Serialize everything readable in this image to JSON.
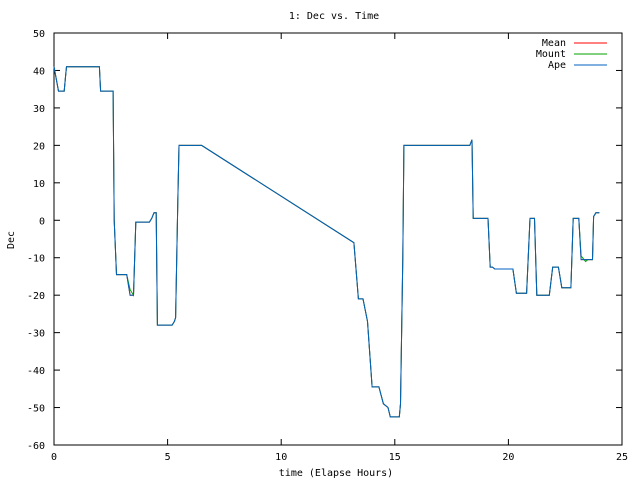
{
  "chart_data": {
    "type": "line",
    "title": "1: Dec vs. Time",
    "xlabel": "time (Elapse Hours)",
    "ylabel": "Dec",
    "xlim": [
      0,
      25
    ],
    "ylim": [
      -60,
      50
    ],
    "xticks": [
      0,
      5,
      10,
      15,
      20,
      25
    ],
    "yticks": [
      -60,
      -50,
      -40,
      -30,
      -20,
      -10,
      0,
      10,
      20,
      30,
      40,
      50
    ],
    "grid": false,
    "legend_position": "top-right",
    "series": [
      {
        "name": "Mean",
        "color": "#ff0000",
        "x": [
          0,
          0.2,
          0.45,
          0.5,
          0.55,
          0.6,
          2.0,
          2.05,
          2.6,
          2.65,
          2.75,
          3.2,
          3.35,
          3.5,
          3.6,
          3.7,
          4.2,
          4.3,
          4.4,
          4.5,
          4.55,
          5.2,
          5.3,
          5.35,
          5.45,
          5.5,
          6.5,
          13.2,
          13.4,
          13.6,
          13.8,
          14.0,
          14.3,
          14.5,
          14.7,
          14.8,
          15.2,
          15.25,
          15.35,
          15.4,
          18.3,
          18.4,
          18.45,
          18.5,
          19.1,
          19.2,
          19.3,
          19.4,
          20.2,
          20.35,
          20.8,
          20.95,
          21.15,
          21.25,
          21.35,
          21.8,
          21.95,
          22.2,
          22.35,
          22.75,
          22.85,
          23.1,
          23.2,
          23.4,
          23.5,
          23.7,
          23.75,
          23.85,
          24.0
        ],
        "y": [
          41,
          34.5,
          34.5,
          38,
          41,
          41,
          41,
          34.5,
          34.5,
          0,
          -14.5,
          -14.5,
          -20,
          -20,
          -0.5,
          -0.5,
          -0.5,
          0.5,
          2,
          2,
          -28,
          -28,
          -27,
          -26,
          5,
          20,
          20,
          -6,
          -21,
          -21,
          -27,
          -44.5,
          -44.5,
          -49,
          -50,
          -52.5,
          -52.5,
          -49,
          -10,
          20,
          20,
          21.5,
          0.5,
          0.5,
          0.5,
          -12.5,
          -12.5,
          -13,
          -13,
          -19.5,
          -19.5,
          0.5,
          0.5,
          -20,
          -20,
          -20,
          -12.5,
          -12.5,
          -18,
          -18,
          0.5,
          0.5,
          -10.5,
          -10.5,
          -10.5,
          -10.5,
          1,
          2,
          2
        ]
      },
      {
        "name": "Mount",
        "color": "#00a000",
        "x": [
          0,
          0.2,
          0.45,
          0.5,
          0.55,
          0.6,
          2.0,
          2.05,
          2.6,
          2.65,
          2.75,
          3.2,
          3.35,
          3.5,
          3.6,
          3.7,
          4.2,
          4.3,
          4.4,
          4.5,
          4.55,
          5.2,
          5.3,
          5.35,
          5.45,
          5.5,
          6.5,
          13.2,
          13.4,
          13.6,
          13.8,
          14.0,
          14.3,
          14.5,
          14.7,
          14.8,
          15.2,
          15.25,
          15.35,
          15.4,
          18.3,
          18.4,
          18.45,
          18.5,
          19.1,
          19.2,
          19.3,
          19.4,
          20.2,
          20.35,
          20.8,
          20.95,
          21.15,
          21.25,
          21.35,
          21.8,
          21.95,
          22.2,
          22.35,
          22.75,
          22.85,
          23.1,
          23.2,
          23.4,
          23.5,
          23.7,
          23.75,
          23.85,
          24.0
        ],
        "y": [
          41,
          34.5,
          34.5,
          38,
          41,
          41,
          41,
          34.5,
          34.5,
          0,
          -14.5,
          -14.5,
          -18.5,
          -20,
          -0.5,
          -0.5,
          -0.5,
          0.5,
          2,
          2,
          -28,
          -28,
          -27,
          -26,
          5,
          20,
          20,
          -6,
          -21,
          -21,
          -27,
          -44.5,
          -44.5,
          -49,
          -50,
          -52.5,
          -52.5,
          -49,
          -10,
          20,
          20,
          21.5,
          0.5,
          0.5,
          0.5,
          -12.5,
          -12.5,
          -13,
          -13,
          -19.5,
          -19.5,
          0.5,
          0.5,
          -20,
          -20,
          -20,
          -12.5,
          -12.5,
          -18,
          -18,
          0.5,
          0.5,
          -9.5,
          -11,
          -10.5,
          -10.5,
          1,
          2,
          2
        ]
      },
      {
        "name": "Ape",
        "color": "#0060c0",
        "x": [
          0,
          0.2,
          0.45,
          0.5,
          0.55,
          0.6,
          2.0,
          2.05,
          2.6,
          2.65,
          2.75,
          3.2,
          3.35,
          3.5,
          3.6,
          3.7,
          4.2,
          4.3,
          4.4,
          4.5,
          4.55,
          5.2,
          5.3,
          5.35,
          5.45,
          5.5,
          6.5,
          13.2,
          13.4,
          13.6,
          13.8,
          14.0,
          14.3,
          14.5,
          14.7,
          14.8,
          15.2,
          15.25,
          15.35,
          15.4,
          18.3,
          18.4,
          18.45,
          18.5,
          19.1,
          19.2,
          19.3,
          19.4,
          20.2,
          20.35,
          20.8,
          20.95,
          21.15,
          21.25,
          21.35,
          21.8,
          21.95,
          22.2,
          22.35,
          22.75,
          22.85,
          23.1,
          23.2,
          23.4,
          23.5,
          23.7,
          23.75,
          23.85,
          24.0
        ],
        "y": [
          41,
          34.5,
          34.5,
          38,
          41,
          41,
          41,
          34.5,
          34.5,
          0,
          -14.5,
          -14.5,
          -20,
          -20,
          -0.5,
          -0.5,
          -0.5,
          0.5,
          2,
          2,
          -28,
          -28,
          -27,
          -26,
          5,
          20,
          20,
          -6,
          -21,
          -21,
          -27,
          -44.5,
          -44.5,
          -49,
          -50,
          -52.5,
          -52.5,
          -49,
          -10,
          20,
          20,
          21.5,
          0.5,
          0.5,
          0.5,
          -12.5,
          -12.5,
          -13,
          -13,
          -19.5,
          -19.5,
          0.5,
          0.5,
          -20,
          -20,
          -20,
          -12.5,
          -12.5,
          -18,
          -18,
          0.5,
          0.5,
          -10.5,
          -10.5,
          -10.5,
          -10.5,
          1,
          2,
          2
        ]
      }
    ]
  }
}
